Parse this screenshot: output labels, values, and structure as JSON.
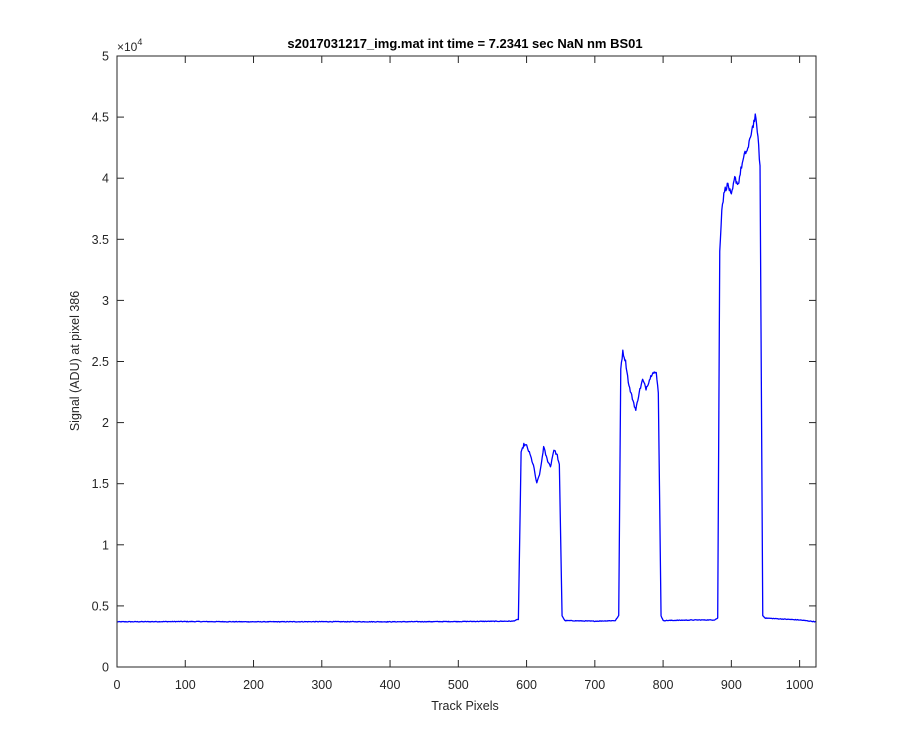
{
  "chart_data": {
    "type": "line",
    "title": "s2017031217_img.mat int time = 7.2341 sec  NaN nm BS01",
    "xlabel": "Track Pixels",
    "ylabel": "Signal (ADU) at pixel 386",
    "xlim": [
      0,
      1024
    ],
    "ylim": [
      0,
      50000
    ],
    "xticks": [
      0,
      100,
      200,
      300,
      400,
      500,
      600,
      700,
      800,
      900,
      1000
    ],
    "yticks": [
      0,
      0.5,
      1,
      1.5,
      2,
      2.5,
      3,
      3.5,
      4,
      4.5,
      5
    ],
    "y_exponent_label": "×10",
    "y_exponent_power": "4",
    "grid": false,
    "series": [
      {
        "color": "#0000ff",
        "x": [
          0,
          100,
          200,
          300,
          400,
          500,
          580,
          588,
          592,
          596,
          600,
          605,
          610,
          615,
          620,
          625,
          630,
          635,
          640,
          645,
          648,
          652,
          656,
          700,
          730,
          735,
          738,
          741,
          745,
          750,
          755,
          760,
          765,
          770,
          775,
          780,
          785,
          790,
          793,
          797,
          800,
          850,
          875,
          880,
          883,
          886,
          890,
          895,
          900,
          905,
          910,
          915,
          920,
          925,
          930,
          935,
          938,
          942,
          946,
          950,
          1000,
          1024
        ],
        "y": [
          3700,
          3720,
          3700,
          3710,
          3700,
          3720,
          3750,
          3900,
          17500,
          18200,
          18100,
          17400,
          16500,
          15000,
          16000,
          18000,
          17000,
          16400,
          17800,
          17300,
          16500,
          4200,
          3800,
          3750,
          3800,
          4200,
          24500,
          25800,
          25000,
          23000,
          22000,
          21000,
          22500,
          23500,
          22800,
          23500,
          24200,
          24000,
          22500,
          4200,
          3800,
          3850,
          3850,
          4000,
          34000,
          37500,
          39000,
          39500,
          38500,
          40000,
          39500,
          41000,
          42000,
          42500,
          44000,
          45000,
          44000,
          41000,
          4200,
          4000,
          3850,
          3700
        ]
      }
    ]
  }
}
